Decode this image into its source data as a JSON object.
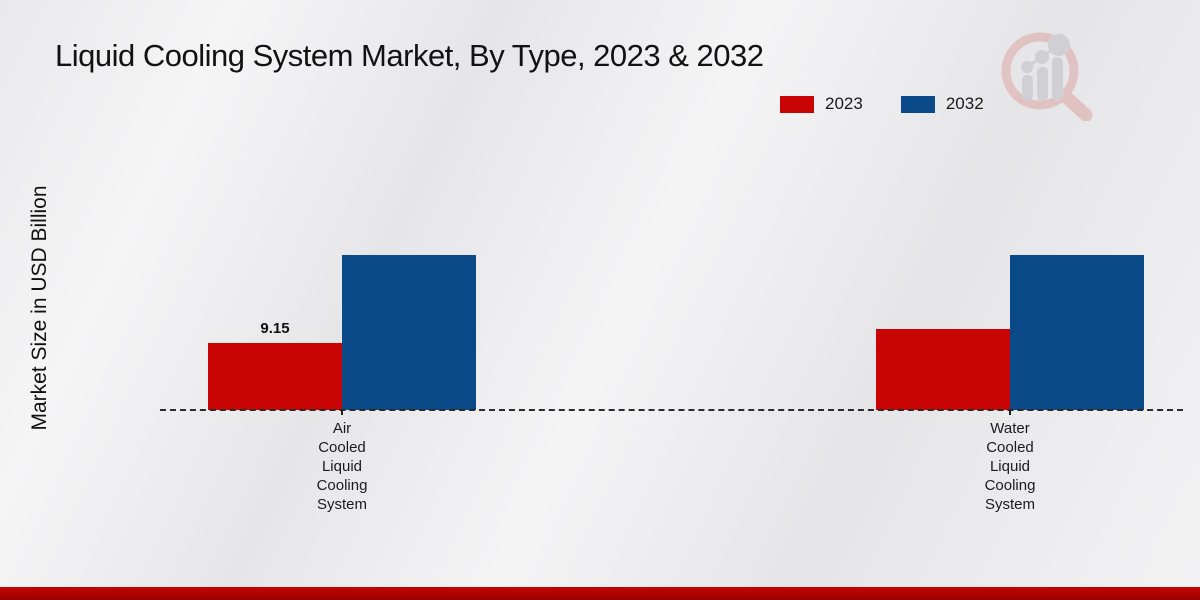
{
  "page": {
    "title": "Liquid Cooling System Market, By Type, 2023 & 2032"
  },
  "y_axis_label": "Market Size in USD Billion",
  "legend": {
    "items": [
      {
        "label": "2023",
        "color": "#c90404"
      },
      {
        "label": "2032",
        "color": "#0b4a88"
      }
    ]
  },
  "chart_data": {
    "type": "bar",
    "title": "Liquid Cooling System Market, By Type, 2023 & 2032",
    "ylabel": "Market Size in USD Billion",
    "xlabel": "",
    "categories": [
      "Air Cooled Liquid Cooling System",
      "Water Cooled Liquid Cooling System"
    ],
    "series": [
      {
        "name": "2023",
        "color": "#c90404",
        "values": [
          9.15,
          11.1
        ]
      },
      {
        "name": "2032",
        "color": "#0b4a88",
        "values": [
          21.2,
          21.2
        ]
      }
    ],
    "annotations": [
      {
        "text": "9.15",
        "series": 0,
        "category": 0
      }
    ],
    "ylim": [
      0,
      37
    ],
    "grid": false,
    "baseline_style": "dashed",
    "legend_position": "top-right"
  },
  "watermark": {
    "icon": "magnifier-bar-chart-logo"
  },
  "footer": {
    "bar_color": "#b10404"
  }
}
